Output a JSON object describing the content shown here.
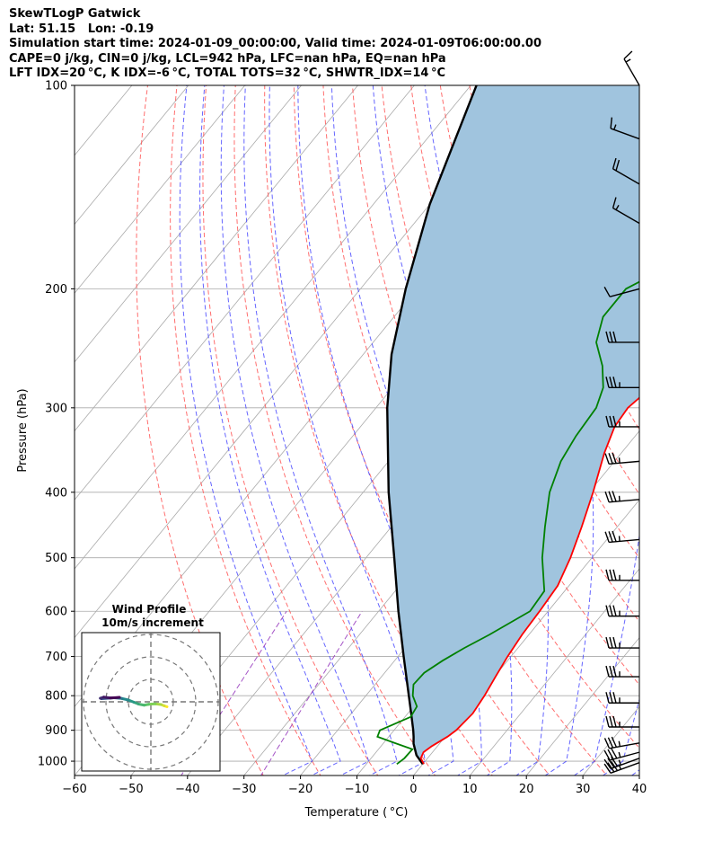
{
  "header": {
    "line1": "SkewTLogP Gatwick",
    "line2": "Lat: 51.15   Lon: -0.19",
    "line3": "Simulation start time: 2024-01-09_00:00:00, Valid time: 2024-01-09T06:00:00.00",
    "line4": "CAPE=0 j/kg, CIN=0 j/kg, LCL=942 hPa, LFC=nan hPa, EQ=nan hPa",
    "line5": "LFT IDX=20 °C, K IDX=-6 °C, TOTAL TOTS=32 °C, SHWTR_IDX=14 °C"
  },
  "chart_data": {
    "type": "line",
    "title": "SkewTLogP Gatwick",
    "xlabel": "Temperature ( °C)",
    "ylabel": "Pressure (hPa)",
    "xlim": [
      -60,
      40
    ],
    "ylim": [
      1050,
      100
    ],
    "y_scale": "log",
    "x_ticks": [
      -60,
      -50,
      -40,
      -30,
      -20,
      -10,
      0,
      10,
      20,
      30,
      40
    ],
    "x_tick_labels": [
      "−60",
      "−50",
      "−40",
      "−30",
      "−20",
      "−10",
      "0",
      "10",
      "20",
      "30",
      "40"
    ],
    "y_ticks": [
      1000,
      900,
      800,
      700,
      600,
      500,
      400,
      300,
      200,
      100
    ],
    "y_tick_labels": [
      "1000",
      "900",
      "800",
      "700",
      "600",
      "500",
      "400",
      "300",
      "200",
      "100"
    ],
    "grid": true,
    "colors": {
      "temperature": "#ff0000",
      "dewpoint": "#008000",
      "parcel": "#000000",
      "fill": "#a0c4de",
      "dry_adiabat": "#ff5555",
      "moist_adiabat": "#4a4aff",
      "isotherm": "#aaaaaa",
      "mixing_ratio": "#9a40c0"
    },
    "series": [
      {
        "key": "temperature",
        "p": [
          1010,
          990,
          970,
          950,
          920,
          900,
          850,
          800,
          750,
          700,
          650,
          600,
          550,
          500,
          450,
          400,
          350,
          320,
          300,
          280,
          260,
          240,
          220,
          200,
          180,
          160,
          140,
          120,
          110,
          100
        ],
        "t": [
          0.2,
          -1.2,
          -1.6,
          -1.0,
          0.4,
          1.0,
          1.5,
          1.0,
          0.2,
          -0.6,
          -1.2,
          -1.5,
          -2.0,
          -3.8,
          -6.3,
          -9.3,
          -13.0,
          -15.0,
          -15.4,
          -14.2,
          -12.0,
          -8.5,
          -5.5,
          -4.0,
          -2.0,
          1.5,
          5.5,
          10.0,
          12.5,
          15.3
        ]
      },
      {
        "key": "dewpoint",
        "p": [
          1010,
          990,
          960,
          940,
          920,
          900,
          860,
          830,
          800,
          770,
          740,
          710,
          680,
          650,
          600,
          560,
          500,
          450,
          400,
          360,
          330,
          300,
          280,
          260,
          240,
          220,
          200,
          180,
          160,
          140,
          120,
          100
        ],
        "t": [
          -4.6,
          -4.1,
          -4.0,
          -8.0,
          -12.0,
          -12.5,
          -9.0,
          -9.4,
          -11.7,
          -13.2,
          -13.0,
          -11.5,
          -9.5,
          -7.0,
          -3.2,
          -3.6,
          -8.8,
          -12.8,
          -17.0,
          -19.5,
          -20.5,
          -21.0,
          -22.7,
          -26.0,
          -30.5,
          -33.0,
          -33.0,
          -27.0,
          -24.0,
          -20.5,
          -15.5,
          -10.0
        ]
      },
      {
        "key": "parcel",
        "p": [
          1010,
          980,
          942,
          920,
          900,
          850,
          800,
          700,
          600,
          500,
          400,
          300,
          250,
          200,
          150,
          100
        ],
        "t": [
          0.0,
          -2.4,
          -4.6,
          -5.6,
          -6.6,
          -9.4,
          -12.4,
          -19.0,
          -26.5,
          -35.0,
          -45.5,
          -58.0,
          -65.0,
          -72.0,
          -80.0,
          -89.0
        ]
      }
    ],
    "wind_barbs": [
      {
        "p": 100,
        "speed_kt": 15,
        "dir_deg": 330
      },
      {
        "p": 120,
        "speed_kt": 15,
        "dir_deg": 290
      },
      {
        "p": 140,
        "speed_kt": 20,
        "dir_deg": 300
      },
      {
        "p": 160,
        "speed_kt": 15,
        "dir_deg": 300
      },
      {
        "p": 200,
        "speed_kt": 10,
        "dir_deg": 255
      },
      {
        "p": 240,
        "speed_kt": 30,
        "dir_deg": 270
      },
      {
        "p": 280,
        "speed_kt": 35,
        "dir_deg": 270
      },
      {
        "p": 320,
        "speed_kt": 35,
        "dir_deg": 270
      },
      {
        "p": 360,
        "speed_kt": 35,
        "dir_deg": 265
      },
      {
        "p": 410,
        "speed_kt": 35,
        "dir_deg": 265
      },
      {
        "p": 470,
        "speed_kt": 35,
        "dir_deg": 265
      },
      {
        "p": 540,
        "speed_kt": 35,
        "dir_deg": 270
      },
      {
        "p": 610,
        "speed_kt": 35,
        "dir_deg": 270
      },
      {
        "p": 680,
        "speed_kt": 35,
        "dir_deg": 270
      },
      {
        "p": 750,
        "speed_kt": 35,
        "dir_deg": 270
      },
      {
        "p": 820,
        "speed_kt": 35,
        "dir_deg": 270
      },
      {
        "p": 890,
        "speed_kt": 35,
        "dir_deg": 270
      },
      {
        "p": 940,
        "speed_kt": 35,
        "dir_deg": 260
      },
      {
        "p": 970,
        "speed_kt": 35,
        "dir_deg": 255
      },
      {
        "p": 990,
        "speed_kt": 35,
        "dir_deg": 250
      },
      {
        "p": 1005,
        "speed_kt": 35,
        "dir_deg": 250
      }
    ],
    "inset": {
      "title_line1": "Wind Profile",
      "title_line2": "10m/s increment",
      "rings_ms": [
        10,
        20,
        30
      ],
      "hodograph_u": [
        7.2,
        6.0,
        4.5,
        2.0,
        -1.0,
        -3.0,
        -5.5,
        -7.5,
        -10.0,
        -13.0,
        -16.5,
        -19.0,
        -22.0,
        -22.5,
        -21.0,
        -18.0,
        -14.0
      ],
      "hodograph_v": [
        -2.2,
        -1.8,
        -1.2,
        -0.9,
        -1.1,
        -1.5,
        -1.0,
        -0.2,
        0.8,
        1.5,
        1.8,
        1.6,
        1.4,
        1.6,
        2.1,
        1.7,
        2.0
      ]
    }
  }
}
